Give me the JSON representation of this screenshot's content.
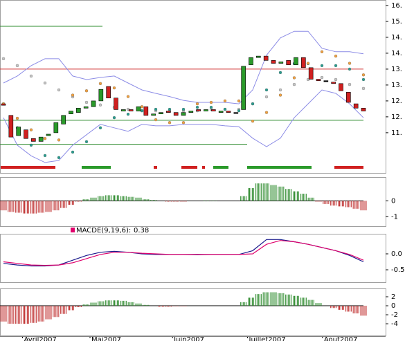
{
  "chart_data": [
    {
      "type": "candlestick",
      "categories": [
        null,
        null,
        null,
        "Avril2007",
        null,
        null,
        null,
        null,
        null,
        null,
        null,
        null,
        "Mai2007",
        null,
        null,
        null,
        null,
        null,
        null,
        null,
        null,
        null,
        null,
        "Juin2007",
        null,
        null,
        null,
        null,
        null,
        null,
        null,
        null,
        null,
        "Juillet2007",
        null,
        null,
        null,
        null,
        null,
        null,
        null,
        null,
        null,
        "Aout2007",
        null,
        null,
        null,
        null,
        null
      ],
      "open": [
        12.6,
        12.2,
        11.5,
        11.7,
        11.4,
        11.3,
        11.5,
        11.6,
        11.9,
        12.25,
        12.3,
        12.45,
        12.5,
        12.7,
        13.2,
        12.8,
        12.35,
        12.4,
        12.35,
        12.5,
        12.2,
        12.25,
        12.35,
        12.3,
        12.2,
        12.3,
        12.4,
        12.35,
        12.4,
        12.3,
        12.35,
        12.3,
        12.4,
        13.95,
        14.2,
        14.25,
        14.1,
        14.0,
        14.1,
        13.95,
        14.2,
        13.85,
        13.45,
        13.4,
        13.35,
        13.3,
        13.0,
        12.6,
        12.45
      ],
      "close": [
        12.55,
        11.45,
        11.8,
        11.4,
        11.3,
        11.45,
        11.55,
        11.95,
        12.2,
        12.35,
        12.45,
        12.5,
        12.7,
        13.1,
        12.8,
        12.4,
        12.4,
        12.35,
        12.5,
        12.2,
        12.25,
        12.3,
        12.3,
        12.2,
        12.3,
        12.35,
        12.35,
        12.4,
        12.35,
        12.35,
        12.3,
        12.3,
        13.9,
        14.2,
        14.25,
        14.1,
        14.0,
        14.05,
        13.95,
        14.2,
        13.85,
        13.45,
        13.4,
        13.4,
        13.3,
        13.05,
        12.65,
        12.45,
        12.35
      ],
      "overlays": [
        {
          "style": "line",
          "color": "#8c8ce6",
          "values": [
            13.32,
            13.56,
            13.92,
            14.16,
            14.16,
            13.56,
            13.44,
            13.51,
            13.56,
            13.32,
            13.08,
            12.96,
            12.85,
            12.72,
            12.65,
            12.65,
            12.65,
            12.6,
            13.08,
            14.28,
            14.88,
            15.11,
            15.11,
            14.52,
            14.4,
            14.4,
            14.33
          ]
        },
        {
          "style": "line",
          "color": "#8c8ce6",
          "values": [
            12.12,
            11.17,
            10.8,
            10.57,
            10.64,
            11.17,
            11.53,
            11.89,
            11.77,
            11.65,
            11.89,
            11.84,
            11.84,
            11.89,
            11.89,
            11.89,
            11.84,
            11.81,
            11.41,
            11.12,
            11.41,
            12.12,
            12.6,
            13.08,
            12.96,
            12.6,
            12.12
          ]
        },
        {
          "style": "dots",
          "color": "#c4c4c4",
          "values": [
            14.16,
            13.92,
            13.56,
            13.32,
            13.08,
            12.84,
            12.65,
            12.56,
            12.48,
            12.41,
            12.36,
            12.36,
            12.36,
            12.36,
            12.36,
            12.41,
            12.41,
            12.41,
            12.6,
            12.84,
            13.08,
            13.27,
            13.44,
            13.51,
            13.44,
            13.27,
            13.13
          ]
        },
        {
          "style": "dots",
          "color": "#2a9d8f",
          "values": [
            12.6,
            11.77,
            11.17,
            10.81,
            10.74,
            10.93,
            11.29,
            11.77,
            12.12,
            12.24,
            12.36,
            12.41,
            12.41,
            12.41,
            12.48,
            12.48,
            12.41,
            12.36,
            12.6,
            13.08,
            13.68,
            13.99,
            13.99,
            13.92,
            13.92,
            13.8,
            13.44
          ]
        },
        {
          "style": "dots",
          "color": "#f0a040",
          "values": [
            12.6,
            12.1,
            11.7,
            11.4,
            11.35,
            12.9,
            13.05,
            13.3,
            13.15,
            12.85,
            12.5,
            12.05,
            11.95,
            11.95,
            12.6,
            12.65,
            12.7,
            12.7,
            12.0,
            12.3,
            12.9,
            13.5,
            14.0,
            14.4,
            14.25,
            14.0,
            13.6
          ]
        }
      ],
      "hlines": [
        {
          "value": 15.28,
          "color": "#2e8b2e"
        },
        {
          "value": 13.8,
          "color": "#d03030"
        },
        {
          "value": 12.03,
          "color": "#2e8b2e"
        },
        {
          "value": 11.2,
          "color": "#2e8b2e"
        }
      ],
      "ylim": [
        10.21,
        16.19
      ],
      "yticks": [
        {
          "value": 16.0,
          "label": "16."
        },
        {
          "value": 15.45,
          "label": "15."
        },
        {
          "value": 14.9,
          "label": "14."
        },
        {
          "value": 14.35,
          "label": "14."
        },
        {
          "value": 13.8,
          "label": "13."
        },
        {
          "value": 13.25,
          "label": "13."
        },
        {
          "value": 12.7,
          "label": "12."
        },
        {
          "value": 12.15,
          "label": "12."
        },
        {
          "value": 11.6,
          "label": "11."
        }
      ]
    },
    {
      "type": "histogram",
      "values": [
        -0.6,
        -0.7,
        -0.75,
        -0.8,
        -0.8,
        -0.75,
        -0.7,
        -0.6,
        -0.45,
        -0.25,
        -0.05,
        0.1,
        0.2,
        0.3,
        0.35,
        0.35,
        0.3,
        0.25,
        0.2,
        0.1,
        0.05,
        0,
        -0.05,
        -0.05,
        -0.05,
        0,
        0,
        0.02,
        0.02,
        0,
        0,
        0,
        0.3,
        0.8,
        1.1,
        1.1,
        1.0,
        0.9,
        0.75,
        0.6,
        0.45,
        0.2,
        -0.05,
        -0.2,
        -0.3,
        -0.35,
        -0.4,
        -0.5,
        -0.6
      ],
      "colors": {
        "up": "#2e8b2e",
        "down": "#c03030"
      },
      "ylim": [
        -1.6,
        1.5
      ],
      "yticks": [
        0,
        -1
      ]
    },
    {
      "type": "line",
      "legend": {
        "label": "MACDE(9,19,6):",
        "value": 0.38,
        "color": "#e0006c"
      },
      "series": [
        {
          "color": "#1a1a8c",
          "values": [
            -0.3,
            -0.35,
            -0.38,
            -0.38,
            -0.35,
            -0.2,
            -0.05,
            0.05,
            0.08,
            0.05,
            0.0,
            -0.02,
            -0.02,
            -0.02,
            -0.03,
            -0.02,
            -0.02,
            -0.02,
            0.1,
            0.45,
            0.45,
            0.38,
            0.3,
            0.2,
            0.1,
            -0.05,
            -0.25
          ]
        },
        {
          "color": "#e0006c",
          "values": [
            -0.25,
            -0.3,
            -0.35,
            -0.36,
            -0.35,
            -0.28,
            -0.15,
            -0.02,
            0.05,
            0.05,
            0.02,
            0.0,
            -0.02,
            -0.02,
            -0.02,
            -0.02,
            -0.02,
            -0.02,
            0.0,
            0.3,
            0.42,
            0.38,
            0.3,
            0.2,
            0.1,
            -0.02,
            -0.2
          ]
        }
      ],
      "ylim": [
        -0.89,
        0.63
      ],
      "yticks": [
        {
          "value": 0,
          "label": "0.0"
        },
        -0.5
      ]
    },
    {
      "type": "histogram",
      "values": [
        -3.5,
        -4,
        -4,
        -4,
        -3.8,
        -3.5,
        -3,
        -2.5,
        -1.8,
        -1,
        -0.3,
        0.3,
        0.7,
        1,
        1.2,
        1.2,
        1.1,
        0.8,
        0.5,
        0.2,
        0,
        -0.2,
        -0.2,
        -0.1,
        -0.1,
        0,
        0,
        0,
        0,
        0,
        0,
        0,
        0.8,
        1.8,
        2.6,
        3,
        3,
        2.8,
        2.5,
        2.2,
        1.8,
        1.3,
        0.6,
        0,
        -0.5,
        -0.9,
        -1.3,
        -1.7,
        -2.2
      ],
      "colors": {
        "up": "#2e8b2e",
        "down": "#c03030"
      },
      "ylim": [
        -6.6,
        3.85
      ],
      "yticks": [
        2,
        0,
        -2,
        -4
      ]
    }
  ]
}
